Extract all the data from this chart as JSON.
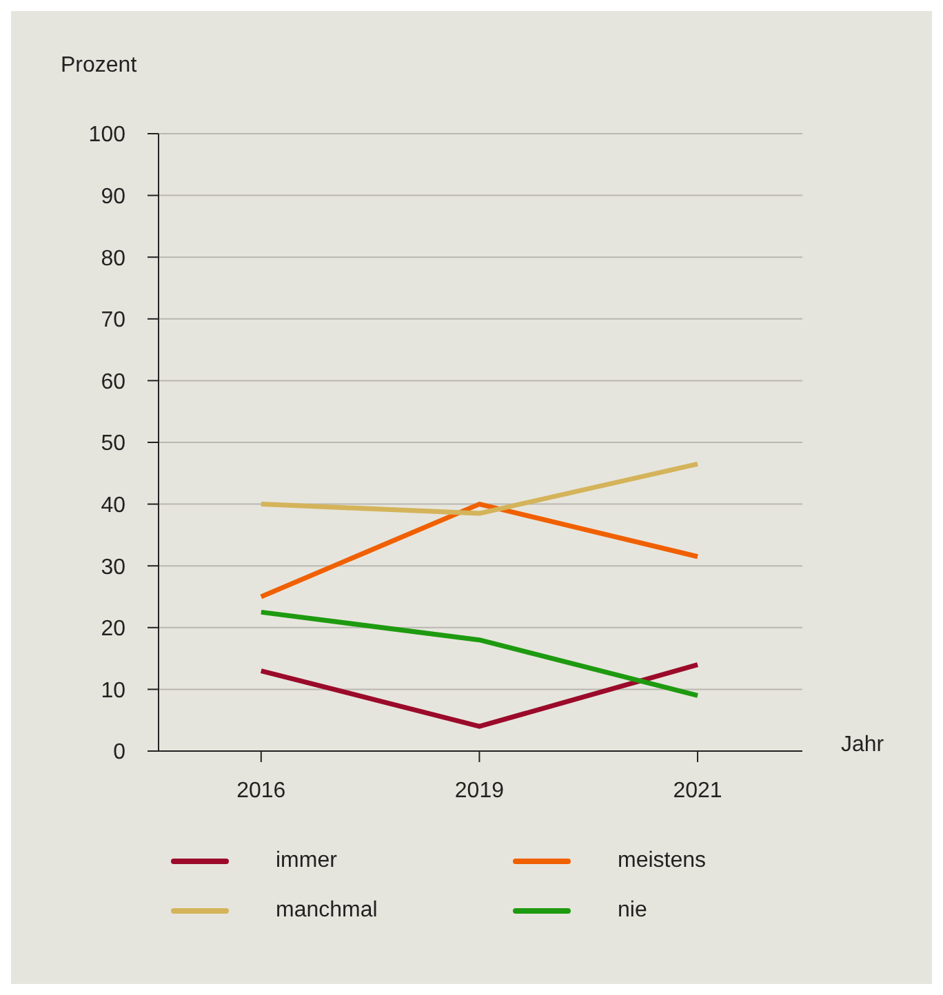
{
  "chart_data": {
    "type": "line",
    "ylabel": "Prozent",
    "xlabel": "Jahr",
    "categories": [
      "2016",
      "2019",
      "2021"
    ],
    "series": [
      {
        "name": "immer",
        "color": "#9b0a2a",
        "values": [
          13,
          4,
          14
        ]
      },
      {
        "name": "meistens",
        "color": "#f06000",
        "values": [
          25,
          40,
          31.5
        ]
      },
      {
        "name": "manchmal",
        "color": "#d4b35a",
        "values": [
          40,
          38.5,
          46.5
        ]
      },
      {
        "name": "nie",
        "color": "#1e9a10",
        "values": [
          22.5,
          18,
          9
        ]
      }
    ],
    "ylim": [
      0,
      100
    ],
    "yticks": [
      0,
      10,
      20,
      30,
      40,
      50,
      60,
      70,
      80,
      90,
      100
    ],
    "grid": "y",
    "legend": "bottom",
    "marker": "none",
    "line_style": "solid"
  }
}
